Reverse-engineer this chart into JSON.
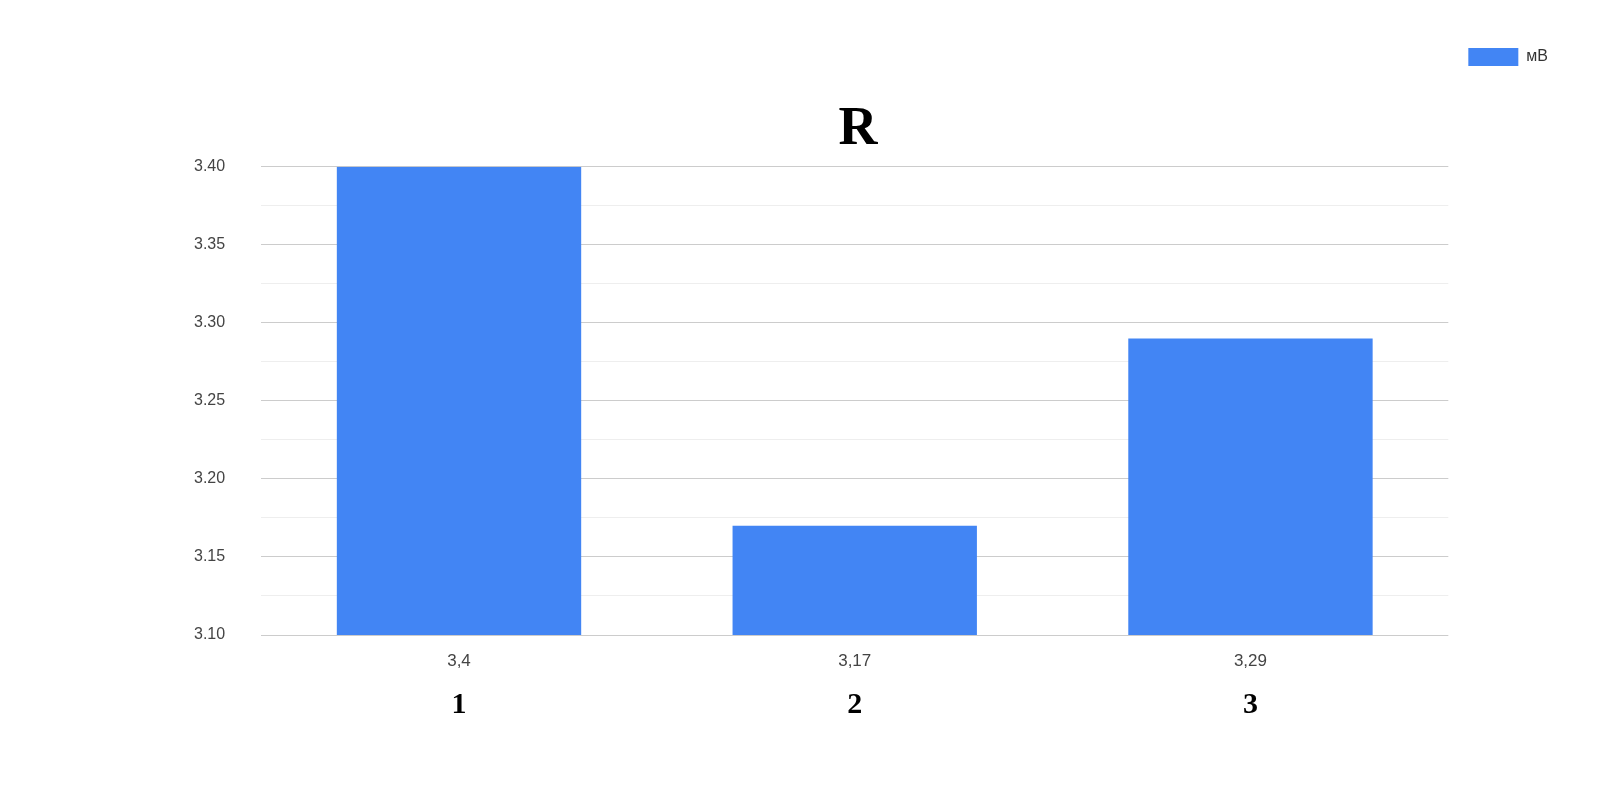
{
  "chart_data": {
    "type": "bar",
    "title": "R",
    "categories": [
      "1",
      "2",
      "3"
    ],
    "series": [
      {
        "name": "мВ",
        "color": "#4285f4",
        "values": [
          3.4,
          3.17,
          3.29
        ],
        "value_labels": [
          "3,4",
          "3,17",
          "3,29"
        ]
      }
    ],
    "ylim": [
      3.1,
      3.4
    ],
    "yticks": [
      {
        "value": 3.1,
        "label": "3.10"
      },
      {
        "value": 3.125,
        "label": null
      },
      {
        "value": 3.15,
        "label": "3.15"
      },
      {
        "value": 3.175,
        "label": null
      },
      {
        "value": 3.2,
        "label": "3.20"
      },
      {
        "value": 3.225,
        "label": null
      },
      {
        "value": 3.25,
        "label": "3.25"
      },
      {
        "value": 3.275,
        "label": null
      },
      {
        "value": 3.3,
        "label": "3.30"
      },
      {
        "value": 3.325,
        "label": null
      },
      {
        "value": 3.35,
        "label": "3.35"
      },
      {
        "value": 3.375,
        "label": null
      },
      {
        "value": 3.4,
        "label": "3.40"
      }
    ],
    "grid": "y",
    "legend": "top right"
  }
}
